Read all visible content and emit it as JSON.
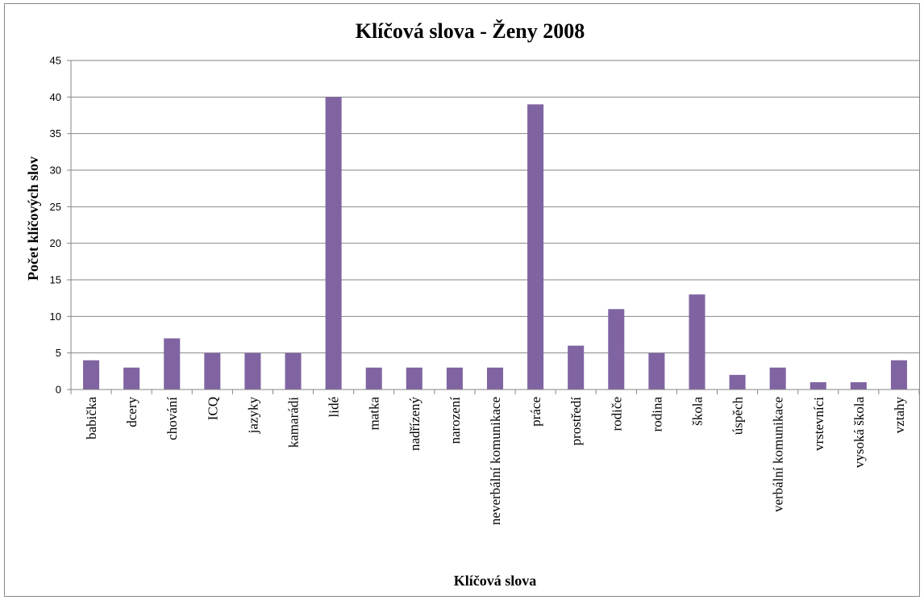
{
  "chart_data": {
    "type": "bar",
    "title": "Klíčová slova - Ženy 2008",
    "xlabel": "Klíčová slova",
    "ylabel": "Počet klíčových slov",
    "ylim": [
      0,
      45
    ],
    "yticks": [
      0,
      5,
      10,
      15,
      20,
      25,
      30,
      35,
      40,
      45
    ],
    "grid": true,
    "bar_color": "#8064a2",
    "categories": [
      "babička",
      "dcery",
      "chování",
      "ICQ",
      "jazyky",
      "kamarádi",
      "lidé",
      "matka",
      "nadřízený",
      "narození",
      "neverbální komunikace",
      "práce",
      "prostředí",
      "rodiče",
      "rodina",
      "škola",
      "úspěch",
      "verbální komunikace",
      "vrstevníci",
      "vysoká škola",
      "vztahy"
    ],
    "values": [
      4,
      3,
      7,
      5,
      5,
      5,
      40,
      3,
      3,
      3,
      3,
      39,
      6,
      11,
      5,
      13,
      2,
      3,
      1,
      1,
      4
    ]
  }
}
